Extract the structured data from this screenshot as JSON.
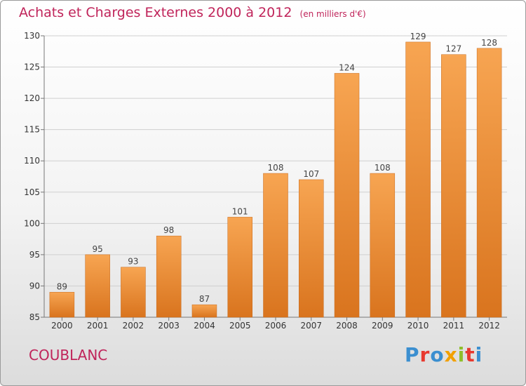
{
  "title": {
    "main": "Achats et Charges Externes 2000 à 2012",
    "unit": "(en milliers d'€)"
  },
  "place_label": "COUBLANC",
  "logo": {
    "text": "Proxiti",
    "colors": [
      "#3b8fd0",
      "#e8392f",
      "#3b8fd0",
      "#f2a000",
      "#8fbf2a",
      "#e8392f",
      "#3b8fd0"
    ]
  },
  "colors": {
    "bar_light": "#f7a552",
    "bar_dark": "#d9741e",
    "title": "#c0245a"
  },
  "chart_data": {
    "type": "bar",
    "title": "Achats et Charges Externes 2000 à 2012",
    "subtitle": "(en milliers d'€)",
    "categories": [
      "2000",
      "2001",
      "2002",
      "2003",
      "2004",
      "2005",
      "2006",
      "2007",
      "2008",
      "2009",
      "2010",
      "2011",
      "2012"
    ],
    "values": [
      89,
      95,
      93,
      98,
      87,
      101,
      108,
      107,
      124,
      108,
      129,
      127,
      128
    ],
    "ylim": [
      85,
      130
    ],
    "yticks": [
      85,
      90,
      95,
      100,
      105,
      110,
      115,
      120,
      125,
      130
    ],
    "grid": true,
    "legend": "none"
  }
}
